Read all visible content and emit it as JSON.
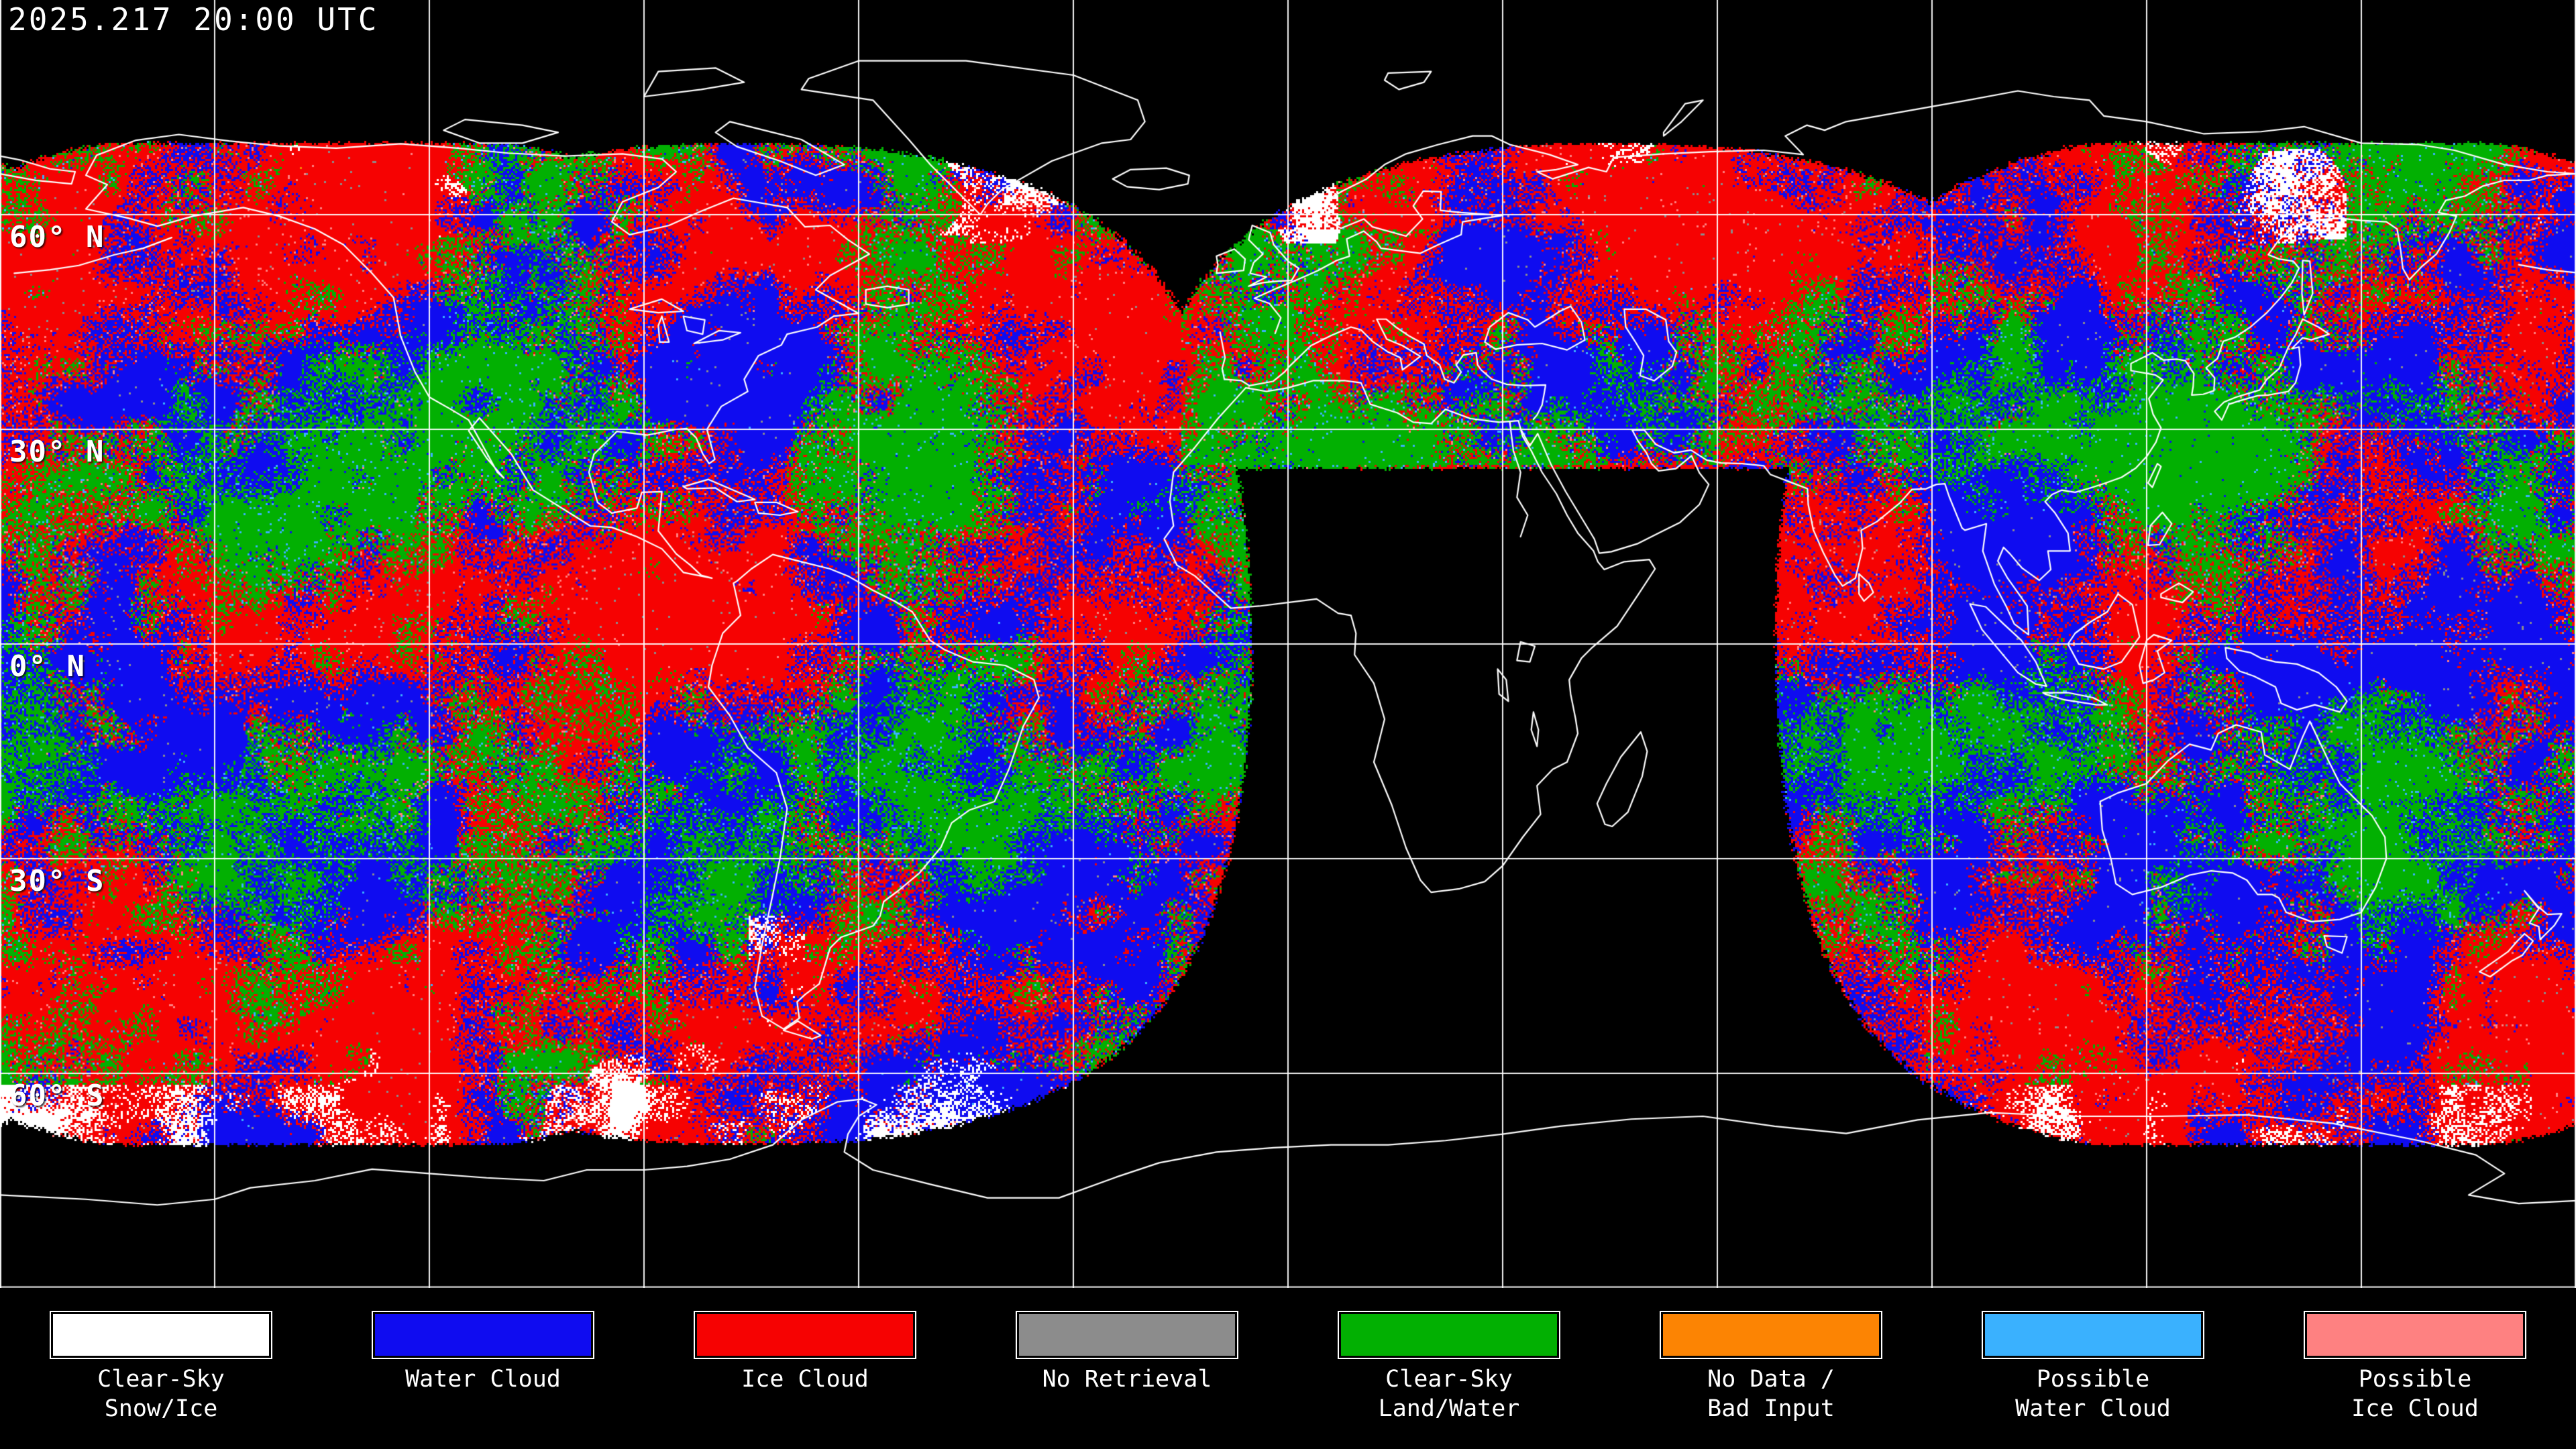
{
  "header": {
    "timestamp": "2025.217 20:00 UTC"
  },
  "map": {
    "projection": "equirectangular",
    "background_color": "#000000",
    "gridline_color": "#ffffff",
    "coastline_color": "#ffffff",
    "grid_interval_deg": 30,
    "latitude_labels": [
      {
        "label": "60° N",
        "lat": 60
      },
      {
        "label": "30° N",
        "lat": 30
      },
      {
        "label": "0° N",
        "lat": 0
      },
      {
        "label": "30° S",
        "lat": -30
      },
      {
        "label": "60° S",
        "lat": -60
      }
    ]
  },
  "legend": {
    "items": [
      {
        "key": "snow",
        "lines": [
          "Clear-Sky",
          "Snow/Ice"
        ],
        "color": "#ffffff"
      },
      {
        "key": "water",
        "lines": [
          "Water Cloud"
        ],
        "color": "#0f0cf0"
      },
      {
        "key": "ice",
        "lines": [
          "Ice Cloud"
        ],
        "color": "#f60202"
      },
      {
        "key": "noret",
        "lines": [
          "No Retrieval"
        ],
        "color": "#8c8c8c"
      },
      {
        "key": "clear",
        "lines": [
          "Clear-Sky",
          "Land/Water"
        ],
        "color": "#02b002"
      },
      {
        "key": "nodata",
        "lines": [
          "No Data /",
          "Bad Input"
        ],
        "color": "#fc8403"
      },
      {
        "key": "pwater",
        "lines": [
          "Possible",
          "Water Cloud"
        ],
        "color": "#3ab1fe"
      },
      {
        "key": "pice",
        "lines": [
          "Possible",
          "Ice Cloud"
        ],
        "color": "#fe8181"
      }
    ]
  }
}
